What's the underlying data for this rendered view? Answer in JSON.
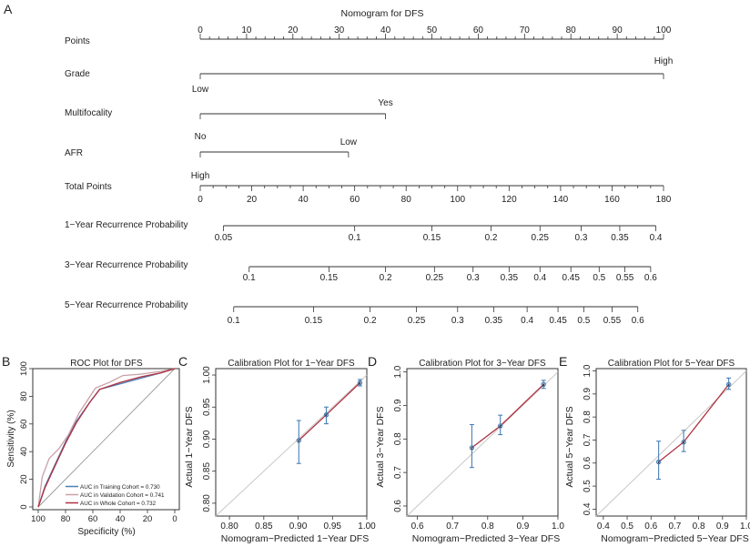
{
  "panel_labels": {
    "a": "A",
    "b": "B",
    "c": "C",
    "d": "D",
    "e": "E"
  },
  "chart_data": [
    {
      "type": "table",
      "title": "Nomogram for DFS",
      "rows": [
        {
          "label": "Points",
          "ticks": [
            "0",
            "10",
            "20",
            "30",
            "40",
            "50",
            "60",
            "70",
            "80",
            "90",
            "100"
          ],
          "values": [
            0,
            10,
            20,
            30,
            40,
            50,
            60,
            70,
            80,
            90,
            100
          ]
        },
        {
          "label": "Grade",
          "levels": [
            {
              "text": "Low",
              "points": 0
            },
            {
              "text": "High",
              "points": 100
            }
          ]
        },
        {
          "label": "Multifocality",
          "levels": [
            {
              "text": "No",
              "points": 0
            },
            {
              "text": "Yes",
              "points": 40
            }
          ]
        },
        {
          "label": "AFR",
          "levels": [
            {
              "text": "High",
              "points": 0
            },
            {
              "text": "Low",
              "points": 32
            }
          ]
        },
        {
          "label": "Total Points",
          "ticks": [
            "0",
            "20",
            "40",
            "60",
            "80",
            "100",
            "120",
            "140",
            "160",
            "180"
          ],
          "values": [
            0,
            20,
            40,
            60,
            80,
            100,
            120,
            140,
            160,
            180
          ]
        },
        {
          "label": "1−Year Recurrence Probability",
          "ticks": [
            "0.05",
            "0.1",
            "0.15",
            "0.2",
            "0.25",
            "0.3",
            "0.35",
            "0.4"
          ],
          "total_points": [
            9,
            60,
            90,
            113,
            132,
            148,
            163,
            177
          ]
        },
        {
          "label": "3−Year Recurrence Probability",
          "ticks": [
            "0.1",
            "0.15",
            "0.2",
            "0.25",
            "0.3",
            "0.35",
            "0.4",
            "0.45",
            "0.5",
            "0.55",
            "0.6"
          ],
          "total_points": [
            19,
            50,
            72,
            91,
            106,
            120,
            132,
            144,
            155,
            165,
            175
          ]
        },
        {
          "label": "5−Year Recurrence Probability",
          "ticks": [
            "0.1",
            "0.15",
            "0.2",
            "0.25",
            "0.3",
            "0.35",
            "0.4",
            "0.45",
            "0.5",
            "0.55",
            "0.6"
          ],
          "total_points": [
            13,
            44,
            66,
            84,
            100,
            114,
            127,
            139,
            149,
            160,
            170
          ]
        }
      ]
    },
    {
      "type": "line",
      "title": "ROC Plot for DFS",
      "xlabel": "Specificity (%)",
      "ylabel": "Sensitivity (%)",
      "xlim": [
        100,
        0
      ],
      "ylim": [
        0,
        100
      ],
      "xticks": [
        100,
        80,
        60,
        40,
        20,
        0
      ],
      "yticks": [
        0,
        20,
        40,
        60,
        80,
        100
      ],
      "legend_position": "bottom-right",
      "series": [
        {
          "name": "AUC in Training Cohort = 0.730",
          "color": "#4a7fb5",
          "points": [
            [
              100,
              0
            ],
            [
              95,
              15
            ],
            [
              88,
              30
            ],
            [
              80,
              47
            ],
            [
              72,
              62
            ],
            [
              62,
              76
            ],
            [
              55,
              85
            ],
            [
              40,
              89
            ],
            [
              25,
              93
            ],
            [
              10,
              97
            ],
            [
              0,
              100
            ]
          ]
        },
        {
          "name": "AUC in Validation Cohort = 0.741",
          "color": "#c9a0a8",
          "points": [
            [
              100,
              0
            ],
            [
              97,
              22
            ],
            [
              92,
              35
            ],
            [
              85,
              42
            ],
            [
              78,
              52
            ],
            [
              70,
              68
            ],
            [
              58,
              86
            ],
            [
              48,
              90
            ],
            [
              38,
              95
            ],
            [
              25,
              96
            ],
            [
              10,
              98
            ],
            [
              0,
              100
            ]
          ]
        },
        {
          "name": "AUC in Whole Cohort = 0.732",
          "color": "#b03040",
          "points": [
            [
              100,
              0
            ],
            [
              95,
              14
            ],
            [
              88,
              29
            ],
            [
              80,
              46
            ],
            [
              72,
              61
            ],
            [
              62,
              76
            ],
            [
              55,
              85
            ],
            [
              40,
              90
            ],
            [
              25,
              94
            ],
            [
              10,
              97
            ],
            [
              0,
              100
            ]
          ]
        }
      ]
    },
    {
      "type": "scatter",
      "title": "Calibration Plot for 1−Year DFS",
      "xlabel": "Nomogram−Predicted 1−Year DFS",
      "ylabel": "Actual 1−Year DFS",
      "xlim": [
        0.78,
        1.0
      ],
      "ylim": [
        0.78,
        1.01
      ],
      "xticks": [
        "0.80",
        "0.85",
        "0.90",
        "0.95",
        "1.00"
      ],
      "yticks": [
        "0.80",
        "0.85",
        "0.90",
        "0.95",
        "1.00"
      ],
      "xtick_values": [
        0.8,
        0.85,
        0.9,
        0.95,
        1.0
      ],
      "ytick_values": [
        0.8,
        0.85,
        0.9,
        0.95,
        1.0
      ],
      "points": [
        {
          "x": 0.901,
          "y": 0.898,
          "lo": 0.862,
          "hi": 0.929
        },
        {
          "x": 0.941,
          "y": 0.938,
          "lo": 0.924,
          "hi": 0.95
        },
        {
          "x": 0.99,
          "y": 0.988,
          "lo": 0.983,
          "hi": 0.993
        }
      ]
    },
    {
      "type": "scatter",
      "title": "Calibration Plot for 3−Year DFS",
      "xlabel": "Nomogram−Predicted 3−Year DFS",
      "ylabel": "Actual 3−Year DFS",
      "xlim": [
        0.57,
        1.0
      ],
      "ylim": [
        0.57,
        1.01
      ],
      "xticks": [
        "0.6",
        "0.7",
        "0.8",
        "0.9",
        "1.0"
      ],
      "yticks": [
        "0.6",
        "0.7",
        "0.8",
        "0.9",
        "1.0"
      ],
      "xtick_values": [
        0.6,
        0.7,
        0.8,
        0.9,
        1.0
      ],
      "ytick_values": [
        0.6,
        0.7,
        0.8,
        0.9,
        1.0
      ],
      "points": [
        {
          "x": 0.755,
          "y": 0.774,
          "lo": 0.715,
          "hi": 0.843
        },
        {
          "x": 0.836,
          "y": 0.839,
          "lo": 0.813,
          "hi": 0.871
        },
        {
          "x": 0.959,
          "y": 0.963,
          "lo": 0.951,
          "hi": 0.975
        }
      ]
    },
    {
      "type": "scatter",
      "title": "Calibration Plot for 5−Year DFS",
      "xlabel": "Nomogram−Predicted 5−Year DFS",
      "ylabel": "Actual 5−Year DFS",
      "xlim": [
        0.37,
        1.0
      ],
      "ylim": [
        0.37,
        1.01
      ],
      "xticks": [
        "0.4",
        "0.5",
        "0.6",
        "0.7",
        "0.8",
        "0.9",
        "1.0"
      ],
      "yticks": [
        "0.4",
        "0.5",
        "0.6",
        "0.7",
        "0.8",
        "0.9",
        "1.0"
      ],
      "xtick_values": [
        0.4,
        0.5,
        0.6,
        0.7,
        0.8,
        0.9,
        1.0
      ],
      "ytick_values": [
        0.4,
        0.5,
        0.6,
        0.7,
        0.8,
        0.9,
        1.0
      ],
      "points": [
        {
          "x": 0.632,
          "y": 0.605,
          "lo": 0.53,
          "hi": 0.695
        },
        {
          "x": 0.737,
          "y": 0.691,
          "lo": 0.65,
          "hi": 0.742
        },
        {
          "x": 0.926,
          "y": 0.941,
          "lo": 0.92,
          "hi": 0.969
        }
      ]
    }
  ]
}
